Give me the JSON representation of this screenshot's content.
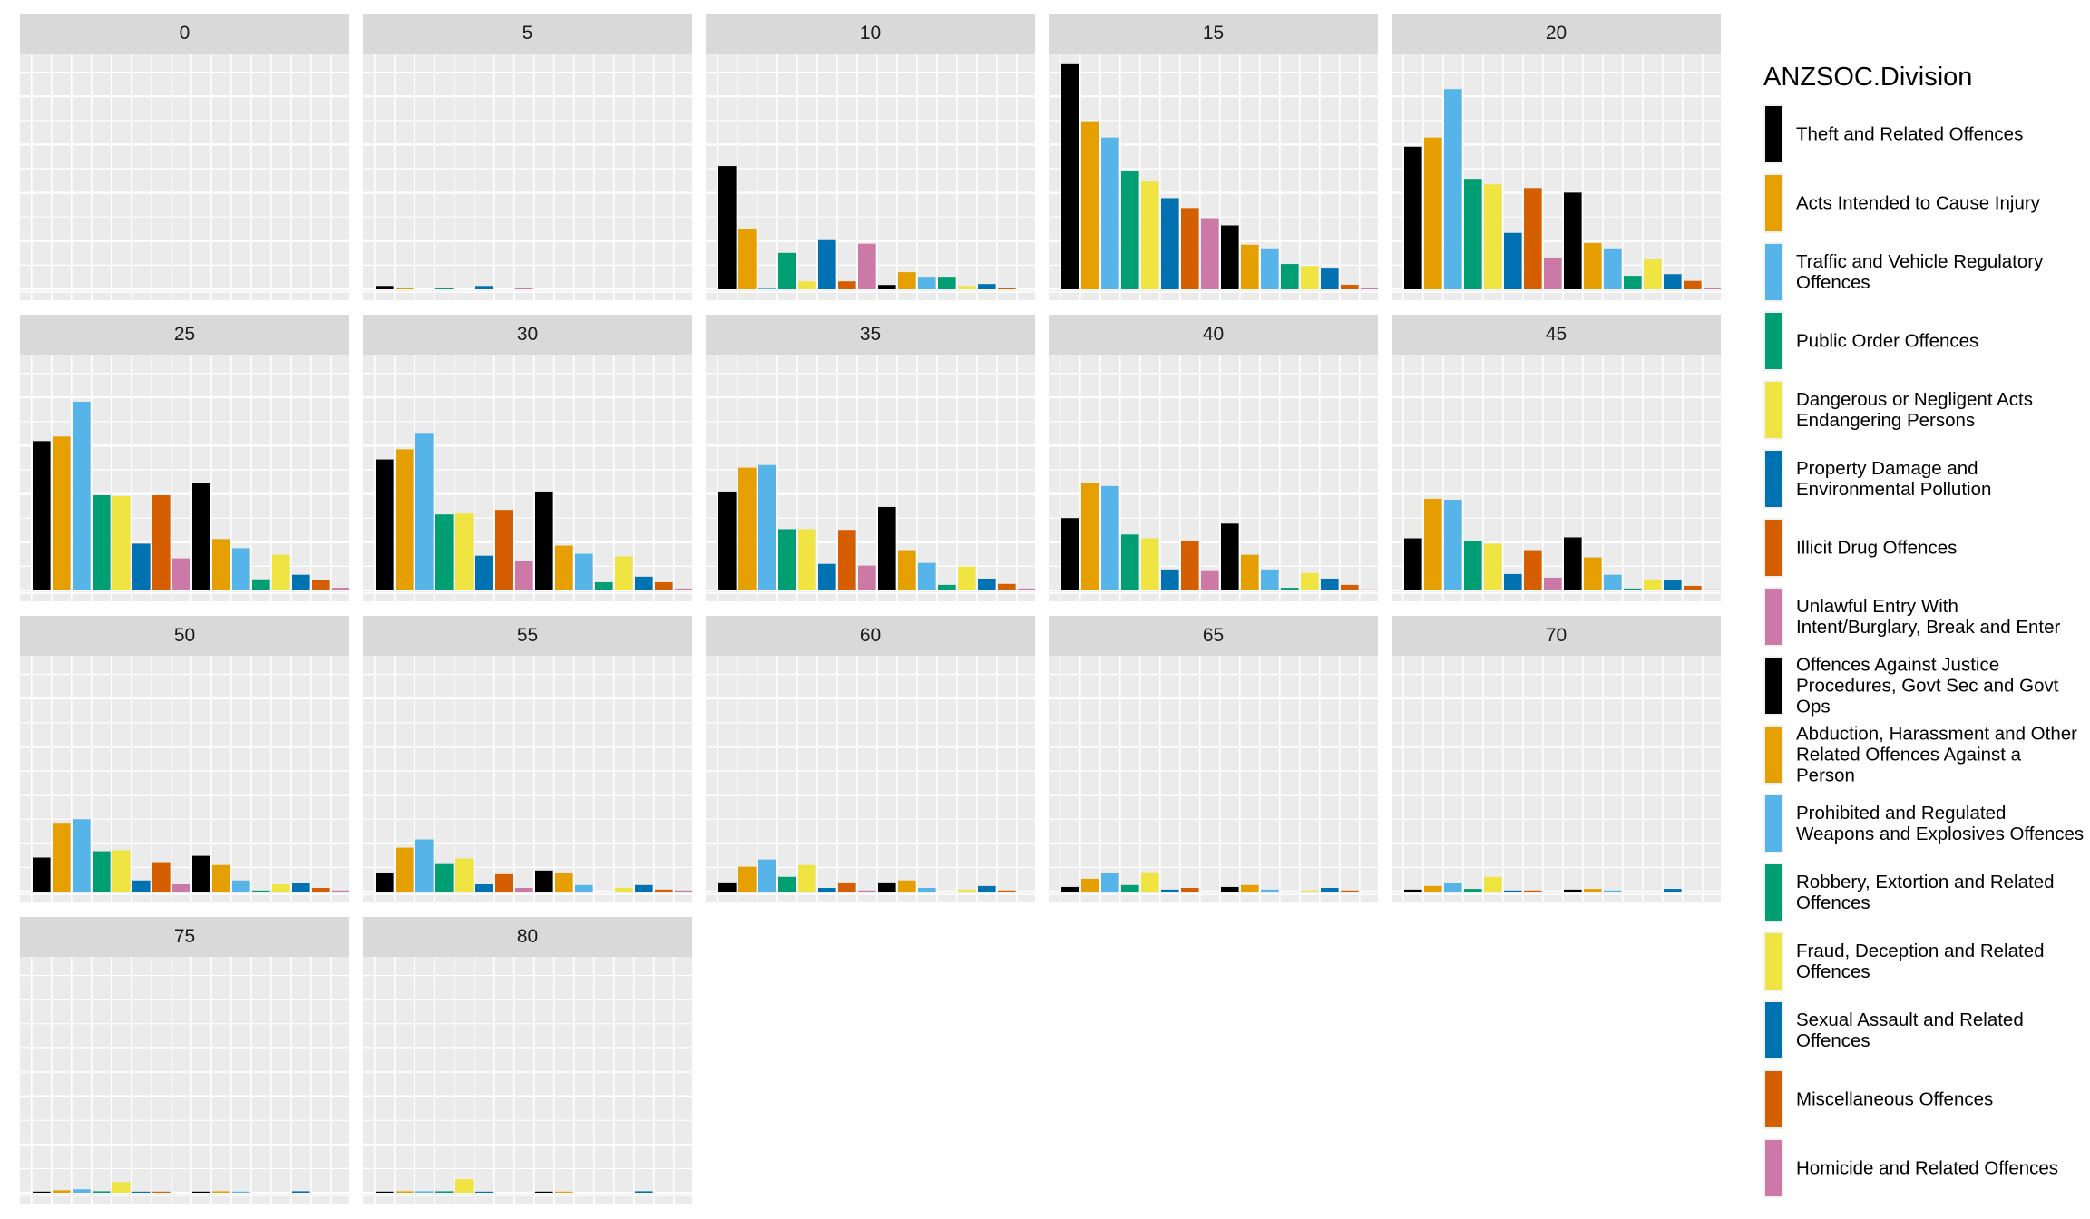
{
  "chart_data": {
    "type": "bar",
    "title": "",
    "xlabel": "",
    "ylabel": "",
    "facet_variable_values": [
      "0",
      "5",
      "10",
      "15",
      "20",
      "25",
      "30",
      "35",
      "40",
      "45",
      "50",
      "55",
      "60",
      "65",
      "70",
      "75",
      "80"
    ],
    "ylim": [
      0,
      9.8
    ],
    "value_units": "relative (one horizontal gridline spacing = 1)",
    "grid": true,
    "legend": {
      "title": "ANZSOC.Division",
      "position": "right",
      "entries": [
        "Theft and Related Offences",
        "Acts Intended to Cause Injury",
        "Traffic and Vehicle Regulatory Offences",
        "Public Order Offences",
        "Dangerous or Negligent Acts Endangering Persons",
        "Property Damage and Environmental Pollution",
        "Illicit Drug Offences",
        "Unlawful Entry With Intent/Burglary, Break and Enter",
        "Offences Against Justice Procedures, Govt Sec and Govt Ops",
        "Abduction, Harassment and Other Related Offences Against a Person",
        "Prohibited and Regulated Weapons and Explosives Offences",
        "Robbery, Extortion and Related Offences",
        "Fraud, Deception and Related Offences",
        "Sexual Assault and Related Offences",
        "Miscellaneous Offences",
        "Homicide and Related Offences"
      ]
    },
    "colors": [
      "#000000",
      "#E69F00",
      "#56B4E9",
      "#009E73",
      "#F0E442",
      "#0072B2",
      "#D55E00",
      "#CC79A7",
      "#000000",
      "#E69F00",
      "#56B4E9",
      "#009E73",
      "#F0E442",
      "#0072B2",
      "#D55E00",
      "#CC79A7"
    ],
    "facets": [
      {
        "label": "0",
        "values": [
          0,
          0,
          0,
          0,
          0,
          0,
          0,
          0,
          0,
          0,
          0,
          0,
          0,
          0,
          0,
          0
        ]
      },
      {
        "label": "5",
        "values": [
          0.14,
          0.06,
          0,
          0.03,
          0,
          0.14,
          0,
          0.06,
          0,
          0,
          0,
          0,
          0,
          0,
          0,
          0
        ]
      },
      {
        "label": "10",
        "values": [
          5.11,
          2.49,
          0.06,
          1.51,
          0.33,
          2.04,
          0.33,
          1.89,
          0.18,
          0.71,
          0.52,
          0.52,
          0.14,
          0.22,
          0.03,
          0
        ]
      },
      {
        "label": "15",
        "values": [
          9.33,
          6.97,
          6.29,
          4.92,
          4.47,
          3.78,
          3.37,
          2.95,
          2.65,
          1.85,
          1.7,
          1.05,
          0.97,
          0.86,
          0.19,
          0.06
        ]
      },
      {
        "label": "20",
        "values": [
          5.91,
          6.29,
          8.3,
          4.58,
          4.35,
          2.34,
          4.2,
          1.32,
          4.01,
          1.92,
          1.7,
          0.56,
          1.24,
          0.63,
          0.35,
          0.06
        ]
      },
      {
        "label": "25",
        "values": [
          6.19,
          6.38,
          7.82,
          3.95,
          3.91,
          1.94,
          3.95,
          1.33,
          4.44,
          2.13,
          1.75,
          0.46,
          1.48,
          0.65,
          0.42,
          0.11
        ]
      },
      {
        "label": "30",
        "values": [
          5.43,
          5.85,
          6.53,
          3.15,
          3.19,
          1.44,
          3.34,
          1.22,
          4.1,
          1.86,
          1.52,
          0.34,
          1.41,
          0.57,
          0.34,
          0.08
        ]
      },
      {
        "label": "35",
        "values": [
          4.1,
          5.09,
          5.2,
          2.54,
          2.54,
          1.1,
          2.51,
          1.03,
          3.46,
          1.67,
          1.14,
          0.23,
          0.99,
          0.49,
          0.27,
          0.08
        ]
      },
      {
        "label": "40",
        "values": [
          3.0,
          4.44,
          4.33,
          2.32,
          2.16,
          0.87,
          2.05,
          0.8,
          2.77,
          1.48,
          0.87,
          0.11,
          0.72,
          0.49,
          0.23,
          0.04
        ]
      },
      {
        "label": "45",
        "values": [
          2.16,
          3.8,
          3.76,
          2.05,
          1.94,
          0.68,
          1.67,
          0.53,
          2.2,
          1.37,
          0.65,
          0.08,
          0.46,
          0.42,
          0.19,
          0.04
        ]
      },
      {
        "label": "50",
        "values": [
          1.41,
          2.85,
          3.0,
          1.67,
          1.71,
          0.46,
          1.22,
          0.3,
          1.48,
          1.1,
          0.46,
          0.04,
          0.3,
          0.34,
          0.15,
          0.04
        ]
      },
      {
        "label": "55",
        "values": [
          0.76,
          1.82,
          2.16,
          1.14,
          1.37,
          0.3,
          0.72,
          0.15,
          0.87,
          0.76,
          0.27,
          0,
          0.15,
          0.27,
          0.08,
          0.04
        ]
      },
      {
        "label": "60",
        "values": [
          0.38,
          1.03,
          1.33,
          0.61,
          1.1,
          0.15,
          0.38,
          0.04,
          0.38,
          0.46,
          0.15,
          0,
          0.08,
          0.23,
          0.04,
          0
        ]
      },
      {
        "label": "65",
        "values": [
          0.19,
          0.53,
          0.76,
          0.27,
          0.8,
          0.08,
          0.15,
          0,
          0.19,
          0.27,
          0.08,
          0,
          0.04,
          0.15,
          0.04,
          0
        ]
      },
      {
        "label": "70",
        "values": [
          0.08,
          0.23,
          0.34,
          0.11,
          0.61,
          0.04,
          0.04,
          0,
          0.08,
          0.11,
          0.04,
          0,
          0,
          0.11,
          0,
          0
        ]
      },
      {
        "label": "75",
        "values": [
          0.03,
          0.1,
          0.14,
          0.06,
          0.44,
          0.03,
          0.03,
          0,
          0.03,
          0.06,
          0.03,
          0,
          0,
          0.06,
          0,
          0
        ]
      },
      {
        "label": "80",
        "values": [
          0.03,
          0.06,
          0.06,
          0.06,
          0.56,
          0.03,
          0,
          0,
          0.03,
          0.03,
          0,
          0,
          0,
          0.06,
          0,
          0
        ]
      }
    ]
  }
}
